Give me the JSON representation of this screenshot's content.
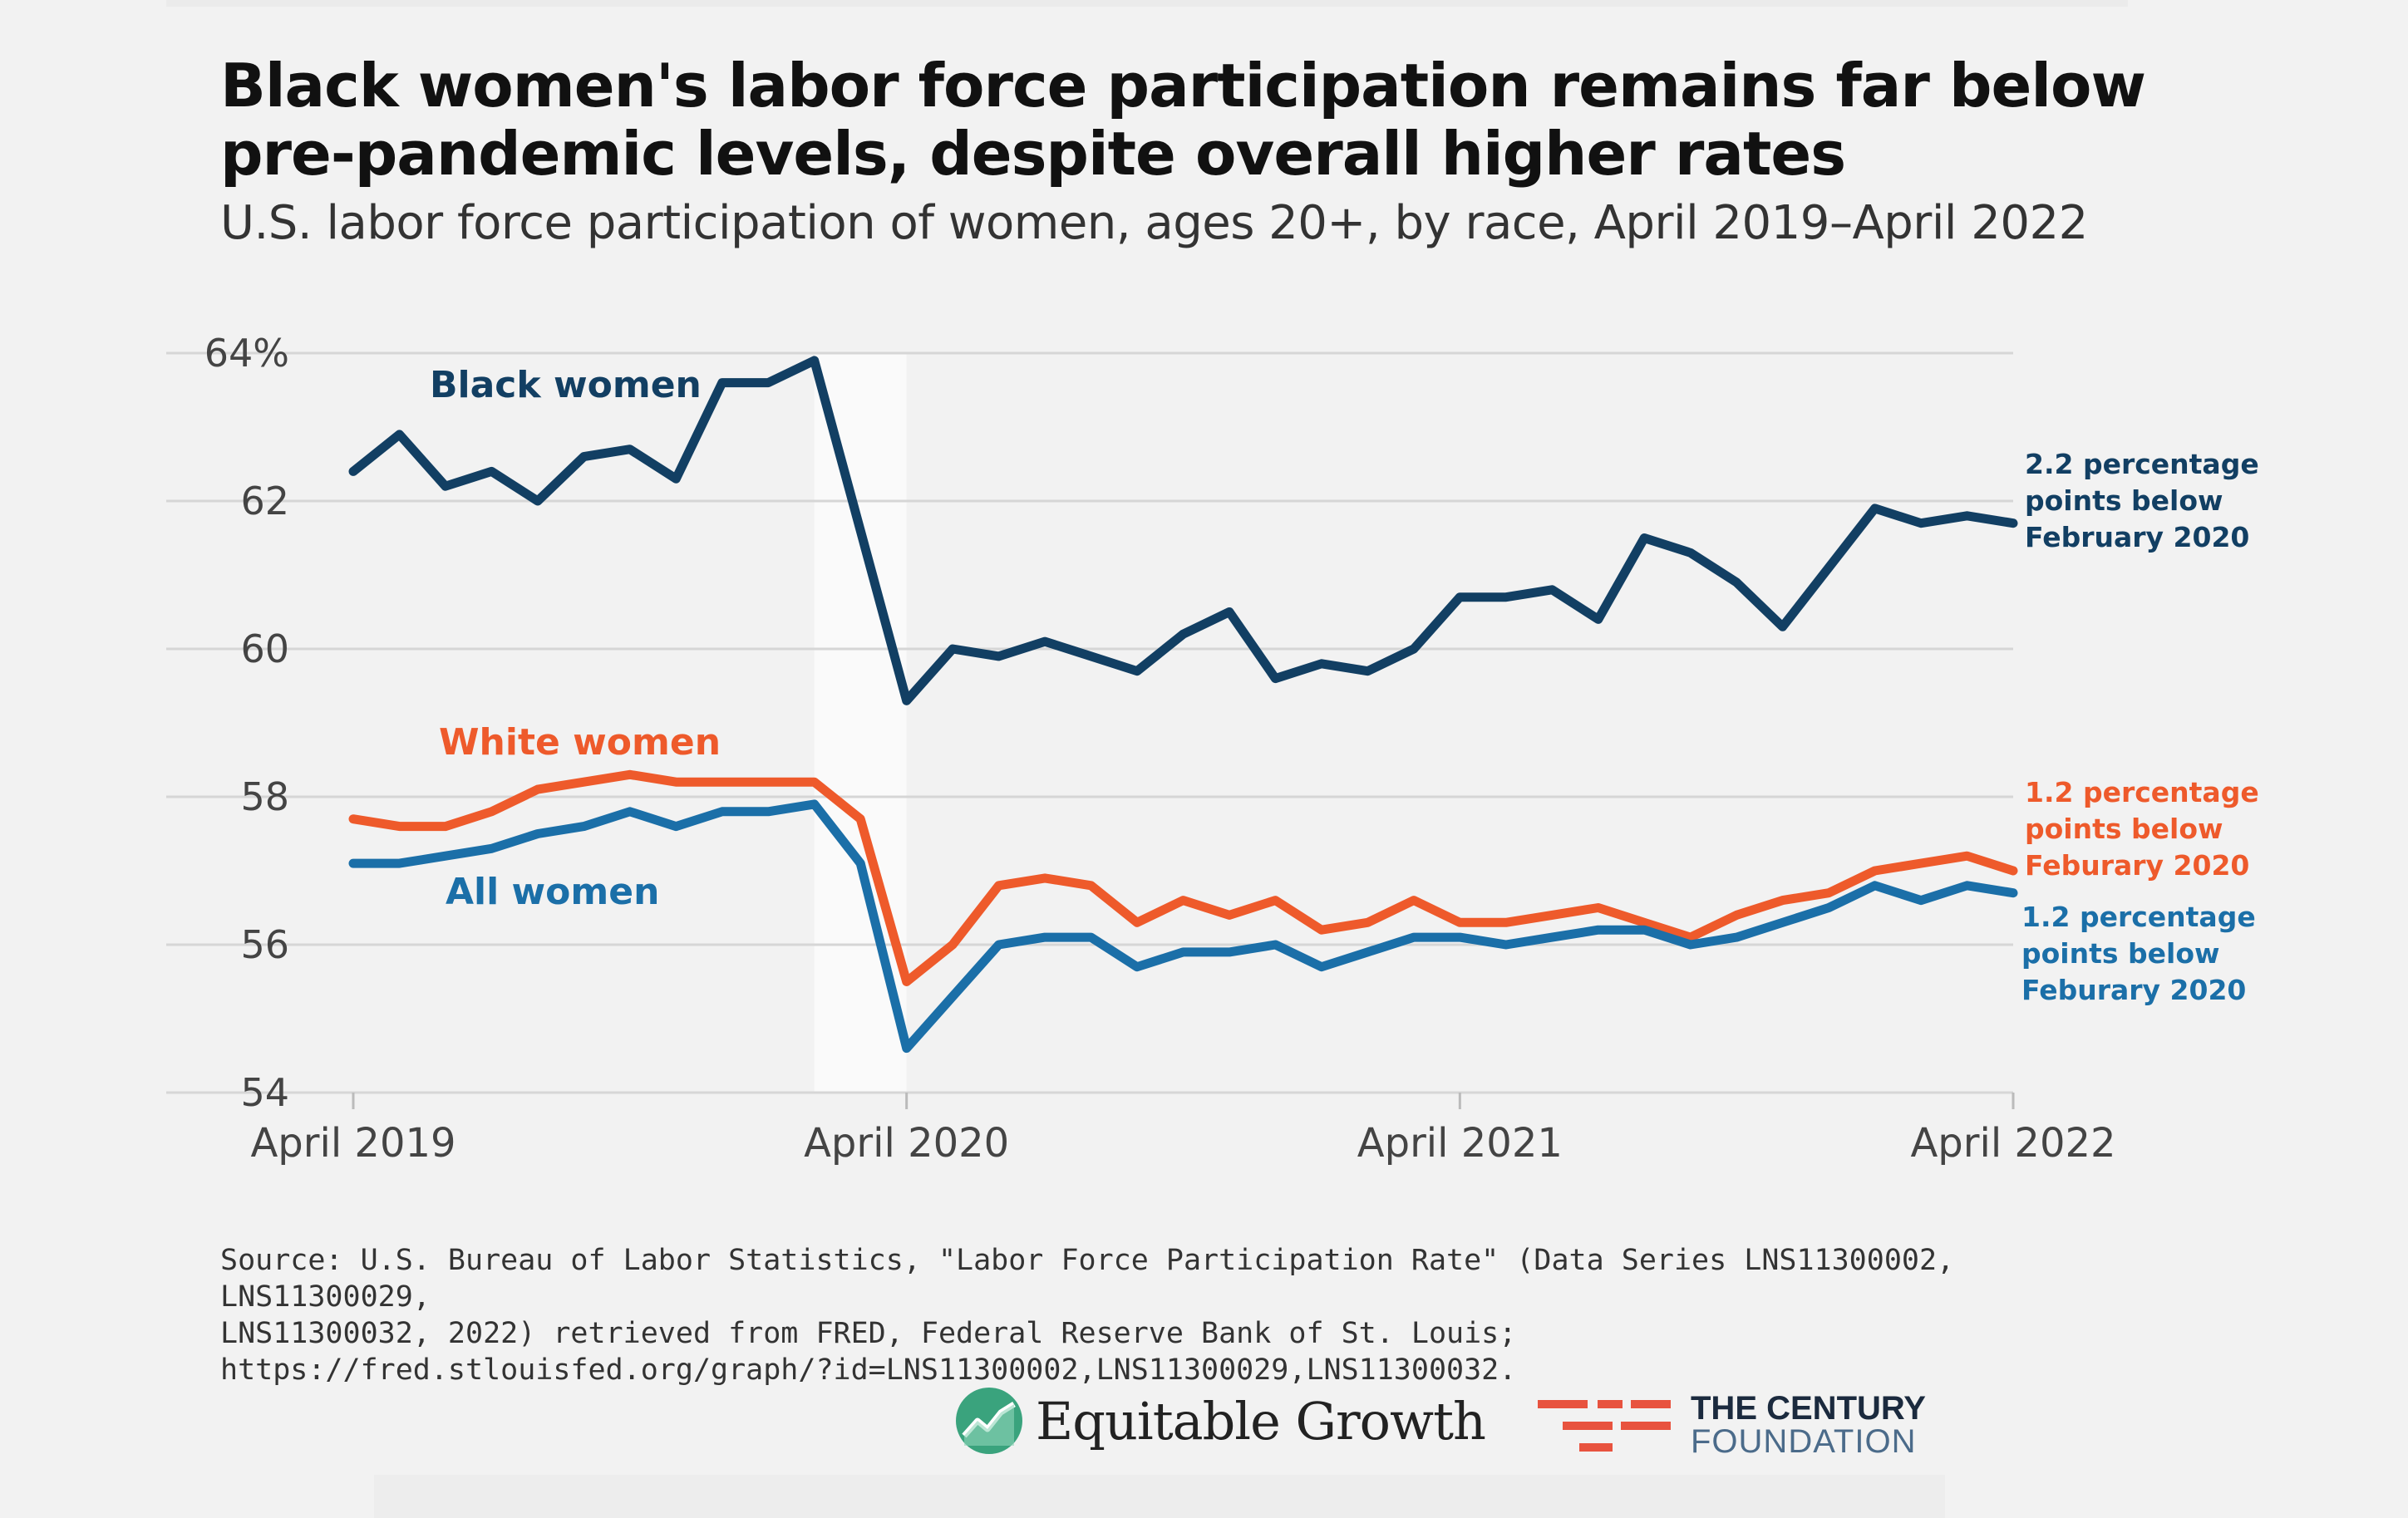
{
  "title_line1": "Black women's labor force participation remains far below",
  "title_line2": "pre-pandemic levels, despite overall higher rates",
  "subtitle": "U.S. labor force participation of women, ages 20+, by race, April 2019–April 2022",
  "source": {
    "line1": "Source: U.S. Bureau of Labor Statistics, \"Labor Force Participation Rate\" (Data Series LNS11300002, LNS11300029,",
    "line2": "LNS11300032, 2022) retrieved from FRED, Federal Reserve Bank of St. Louis;",
    "line3": "https://fred.stlouisfed.org/graph/?id=LNS11300002,LNS11300029,LNS11300032."
  },
  "logos": {
    "equitable_growth": "Equitable Growth",
    "century_line1": "THE CENTURY",
    "century_line2": "FOUNDATION"
  },
  "colors": {
    "black_women": "#123f63",
    "white_women": "#ee5a2b",
    "all_women": "#1b6fa8",
    "grid": "#d6d6d6",
    "axis_text": "#444444",
    "shade": "#fafafa"
  },
  "chart_data": {
    "type": "line",
    "title": "Black women's labor force participation remains far below pre-pandemic levels, despite overall higher rates",
    "xlabel": "",
    "ylabel": "",
    "ylim": [
      54,
      64
    ],
    "yticks": [
      54,
      56,
      58,
      60,
      62,
      64
    ],
    "ytick_labels": [
      "54",
      "56",
      "58",
      "60",
      "62",
      "64%"
    ],
    "xticks": [
      {
        "index": 0,
        "label": "April 2019"
      },
      {
        "index": 12,
        "label": "April 2020"
      },
      {
        "index": 24,
        "label": "April 2021"
      },
      {
        "index": 36,
        "label": "April 2022"
      }
    ],
    "shaded_recession": {
      "start_index": 10,
      "end_index": 12
    },
    "grid": true,
    "series": [
      {
        "name": "Black women",
        "key": "black_women",
        "values": [
          62.4,
          62.9,
          62.2,
          62.4,
          62.0,
          62.6,
          62.7,
          62.3,
          63.6,
          63.6,
          63.9,
          61.6,
          59.3,
          60.0,
          59.9,
          60.1,
          59.9,
          59.7,
          60.2,
          60.5,
          59.6,
          59.8,
          59.7,
          60.0,
          60.7,
          60.7,
          60.8,
          60.4,
          61.5,
          61.3,
          60.9,
          60.3,
          61.1,
          61.9,
          61.7,
          61.8,
          61.7
        ],
        "annotation": [
          "2.2 percentage",
          "points below",
          "February 2020"
        ]
      },
      {
        "name": "White women",
        "key": "white_women",
        "values": [
          57.7,
          57.6,
          57.6,
          57.8,
          58.1,
          58.2,
          58.3,
          58.2,
          58.2,
          58.2,
          58.2,
          57.7,
          55.5,
          56.0,
          56.8,
          56.9,
          56.8,
          56.3,
          56.6,
          56.4,
          56.6,
          56.2,
          56.3,
          56.6,
          56.3,
          56.3,
          56.4,
          56.5,
          56.3,
          56.1,
          56.4,
          56.6,
          56.7,
          57.0,
          57.1,
          57.2,
          57.0
        ],
        "annotation": [
          "1.2 percentage",
          "points below",
          "Feburary 2020"
        ]
      },
      {
        "name": "All women",
        "key": "all_women",
        "values": [
          57.1,
          57.1,
          57.2,
          57.3,
          57.5,
          57.6,
          57.8,
          57.6,
          57.8,
          57.8,
          57.9,
          57.1,
          54.6,
          55.3,
          56.0,
          56.1,
          56.1,
          55.7,
          55.9,
          55.9,
          56.0,
          55.7,
          55.9,
          56.1,
          56.1,
          56.0,
          56.1,
          56.2,
          56.2,
          56.0,
          56.1,
          56.3,
          56.5,
          56.8,
          56.6,
          56.8,
          56.7
        ],
        "annotation": [
          "1.2 percentage",
          "points below",
          "Feburary 2020"
        ]
      }
    ]
  }
}
